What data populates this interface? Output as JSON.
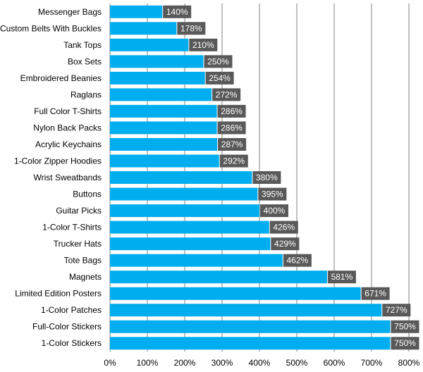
{
  "chart_data": {
    "type": "bar",
    "orientation": "horizontal",
    "categories": [
      "Messenger Bags",
      "Custom Belts With Buckles",
      "Tank Tops",
      "Box Sets",
      "Embroidered Beanies",
      "Raglans",
      "Full Color T-Shirts",
      "Nylon Back Packs",
      "Acrylic Keychains",
      "1-Color Zipper Hoodies",
      "Wrist Sweatbands",
      "Buttons",
      "Guitar Picks",
      "1-Color T-Shirts",
      "Trucker Hats",
      "Tote Bags",
      "Magnets",
      "Limited Edition Posters",
      "1-Color Patches",
      "Full-Color Stickers",
      "1-Color Stickers"
    ],
    "values": [
      140,
      178,
      210,
      250,
      254,
      272,
      286,
      286,
      287,
      292,
      380,
      395,
      400,
      426,
      429,
      462,
      581,
      671,
      727,
      750,
      750
    ],
    "data_labels": [
      "140%",
      "178%",
      "210%",
      "250%",
      "254%",
      "272%",
      "286%",
      "286%",
      "287%",
      "292%",
      "380%",
      "395%",
      "400%",
      "426%",
      "429%",
      "462%",
      "581%",
      "671%",
      "727%",
      "750%",
      "750%"
    ],
    "x_ticks": [
      "0%",
      "100%",
      "200%",
      "300%",
      "400%",
      "500%",
      "600%",
      "700%",
      "800%"
    ],
    "xlim": [
      0,
      800
    ],
    "grid": "vertical",
    "legend": "none",
    "colors": {
      "bar": "#00aeef",
      "label_box": "#595959",
      "label_text": "#ffffff",
      "grid": "#808080",
      "axis": "#808080"
    }
  }
}
